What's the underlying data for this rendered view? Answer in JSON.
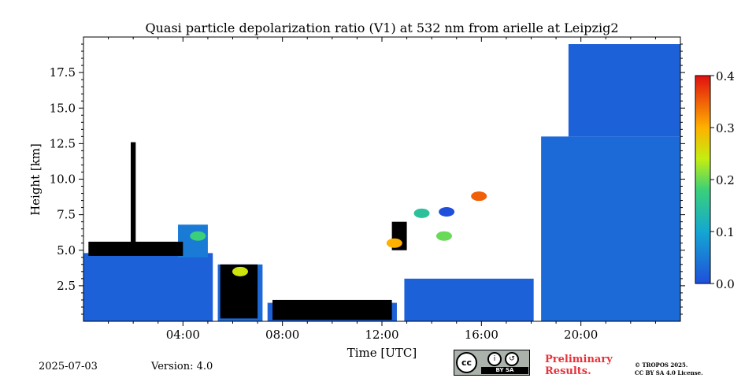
{
  "chart_data": {
    "type": "heatmap",
    "title": "Quasi particle depolarization ratio (V1) at 532 nm from arielle at Leipzig2",
    "xlabel": "Time [UTC]",
    "ylabel": "Height [km]",
    "xlim": [
      0,
      24
    ],
    "ylim": [
      0,
      20
    ],
    "x_ticks": [
      4,
      8,
      12,
      16,
      20
    ],
    "x_tick_labels": [
      "04:00",
      "08:00",
      "12:00",
      "16:00",
      "20:00"
    ],
    "y_ticks": [
      2.5,
      5.0,
      7.5,
      10.0,
      12.5,
      15.0,
      17.5
    ],
    "y_tick_labels": [
      "2.5",
      "5.0",
      "7.5",
      "10.0",
      "12.5",
      "15.0",
      "17.5"
    ],
    "colorbar": {
      "min": 0.0,
      "max": 0.4,
      "ticks": [
        0.0,
        0.1,
        0.2,
        0.3,
        0.4
      ],
      "tick_labels": [
        "0.0",
        "0.1",
        "0.2",
        "0.3",
        "0.4"
      ],
      "colormap": "jet"
    },
    "colors": {
      "no_data": "#ffffff",
      "low_depol": "#1f5fc8",
      "mid_depol": "#2aa6d9",
      "cloud_or_attenuated": "#000000"
    },
    "segments": [
      {
        "x": [
          0.0,
          5.2
        ],
        "bottom": 0.0,
        "top": 4.8,
        "value": 0.02
      },
      {
        "x": [
          3.8,
          5.0
        ],
        "bottom": 4.5,
        "top": 6.8,
        "value": 0.05
      },
      {
        "x": [
          5.4,
          7.2
        ],
        "bottom": 0.0,
        "top": 4.0,
        "value": 0.03
      },
      {
        "x": [
          7.4,
          12.6
        ],
        "bottom": 0.0,
        "top": 1.3,
        "value": 0.02
      },
      {
        "x": [
          12.9,
          18.1
        ],
        "bottom": 0.0,
        "top": 3.0,
        "value": 0.02
      },
      {
        "x": [
          18.4,
          24.0
        ],
        "bottom": 0.0,
        "top": 13.0,
        "value": 0.03
      },
      {
        "x": [
          19.5,
          24.0
        ],
        "bottom": 13.0,
        "top": 19.5,
        "value": 0.02
      }
    ],
    "cloud_layers": [
      {
        "x": [
          0.2,
          4.0
        ],
        "bottom": 4.6,
        "top": 5.6
      },
      {
        "x": [
          1.9,
          2.1
        ],
        "bottom": 5.0,
        "top": 12.6
      },
      {
        "x": [
          5.5,
          7.0
        ],
        "bottom": 0.2,
        "top": 4.0
      },
      {
        "x": [
          7.6,
          12.4
        ],
        "bottom": 0.1,
        "top": 1.5
      },
      {
        "x": [
          12.4,
          13.0
        ],
        "bottom": 5.0,
        "top": 7.0
      }
    ],
    "features": [
      {
        "x": 15.9,
        "height": 8.8,
        "value": 0.35
      },
      {
        "x": 4.6,
        "height": 6.0,
        "value": 0.18
      },
      {
        "x": 13.6,
        "height": 7.6,
        "value": 0.15
      },
      {
        "x": 14.6,
        "height": 7.7,
        "value": 0.0
      },
      {
        "x": 14.5,
        "height": 6.0,
        "value": 0.2
      },
      {
        "x": 6.3,
        "height": 3.5,
        "value": 0.25
      },
      {
        "x": 12.5,
        "height": 5.5,
        "value": 0.3
      }
    ]
  },
  "footer": {
    "date": "2025-07-03",
    "version": "Version: 4.0",
    "preliminary_line1": "Preliminary",
    "preliminary_line2": "Results.",
    "copyright_line1": "© TROPOS 2025.",
    "copyright_line2": "CC BY SA 4.0 License.",
    "license_badge": "CC BY SA",
    "license_band_text": "BY    SA"
  }
}
